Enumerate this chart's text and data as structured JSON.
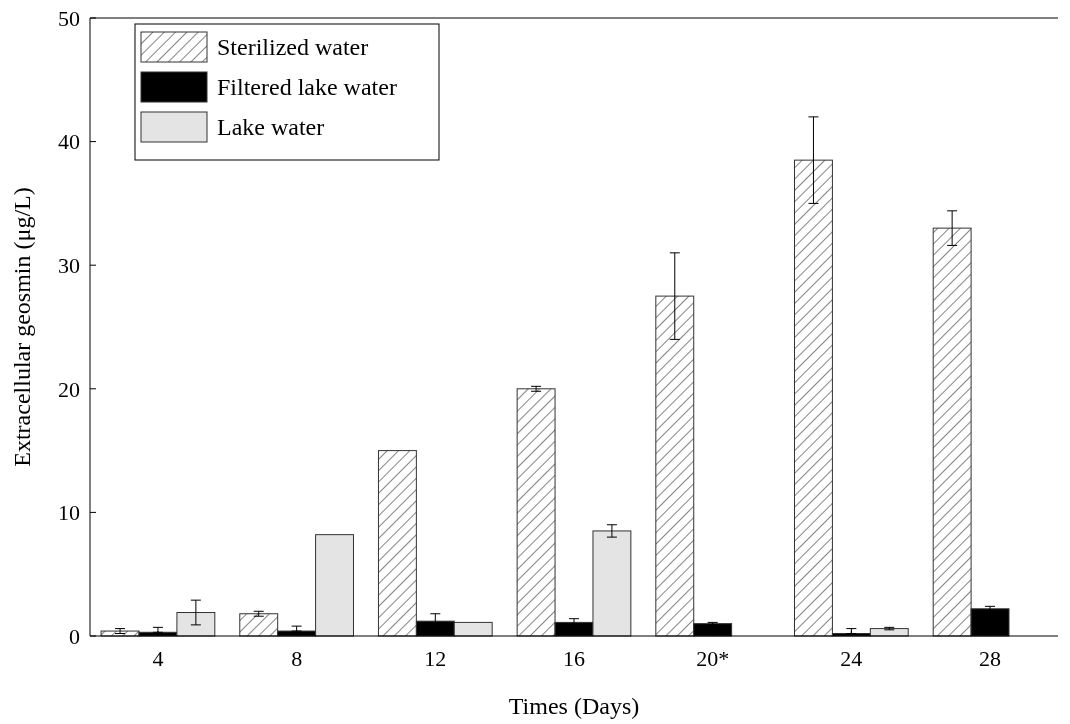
{
  "chart_data": {
    "type": "bar",
    "xlabel": "Times (Days)",
    "ylabel": "Extracellular geosmin  (μg/L)",
    "categories": [
      "4",
      "8",
      "12",
      "16",
      "20*",
      "24",
      "28"
    ],
    "ylim": [
      0,
      50
    ],
    "yticks": [
      0,
      10,
      20,
      30,
      40,
      50
    ],
    "legend": "top left",
    "grid": false,
    "series": [
      {
        "name": "Sterilized water",
        "color": "#333333",
        "values": [
          0.4,
          1.8,
          15,
          20,
          27.5,
          38.5,
          33
        ],
        "errors": [
          0.2,
          0.2,
          null,
          0.2,
          3.5,
          3.5,
          1.4
        ]
      },
      {
        "name": "Filtered lake water",
        "color": "#000000",
        "values": [
          0.3,
          0.4,
          1.2,
          1.1,
          1.0,
          0.2,
          2.2
        ],
        "errors": [
          [
            0.3,
            0.7
          ],
          [
            0.4,
            0.8
          ],
          0.6,
          0.3,
          0.1,
          [
            0.2,
            0.6
          ],
          0.2
        ]
      },
      {
        "name": "Lake water",
        "color": "#e4e4e4",
        "values": [
          1.9,
          8.2,
          1.1,
          8.5,
          null,
          0.6,
          0
        ],
        "errors": [
          1.0,
          null,
          null,
          0.5,
          null,
          0.1,
          null
        ]
      }
    ]
  }
}
